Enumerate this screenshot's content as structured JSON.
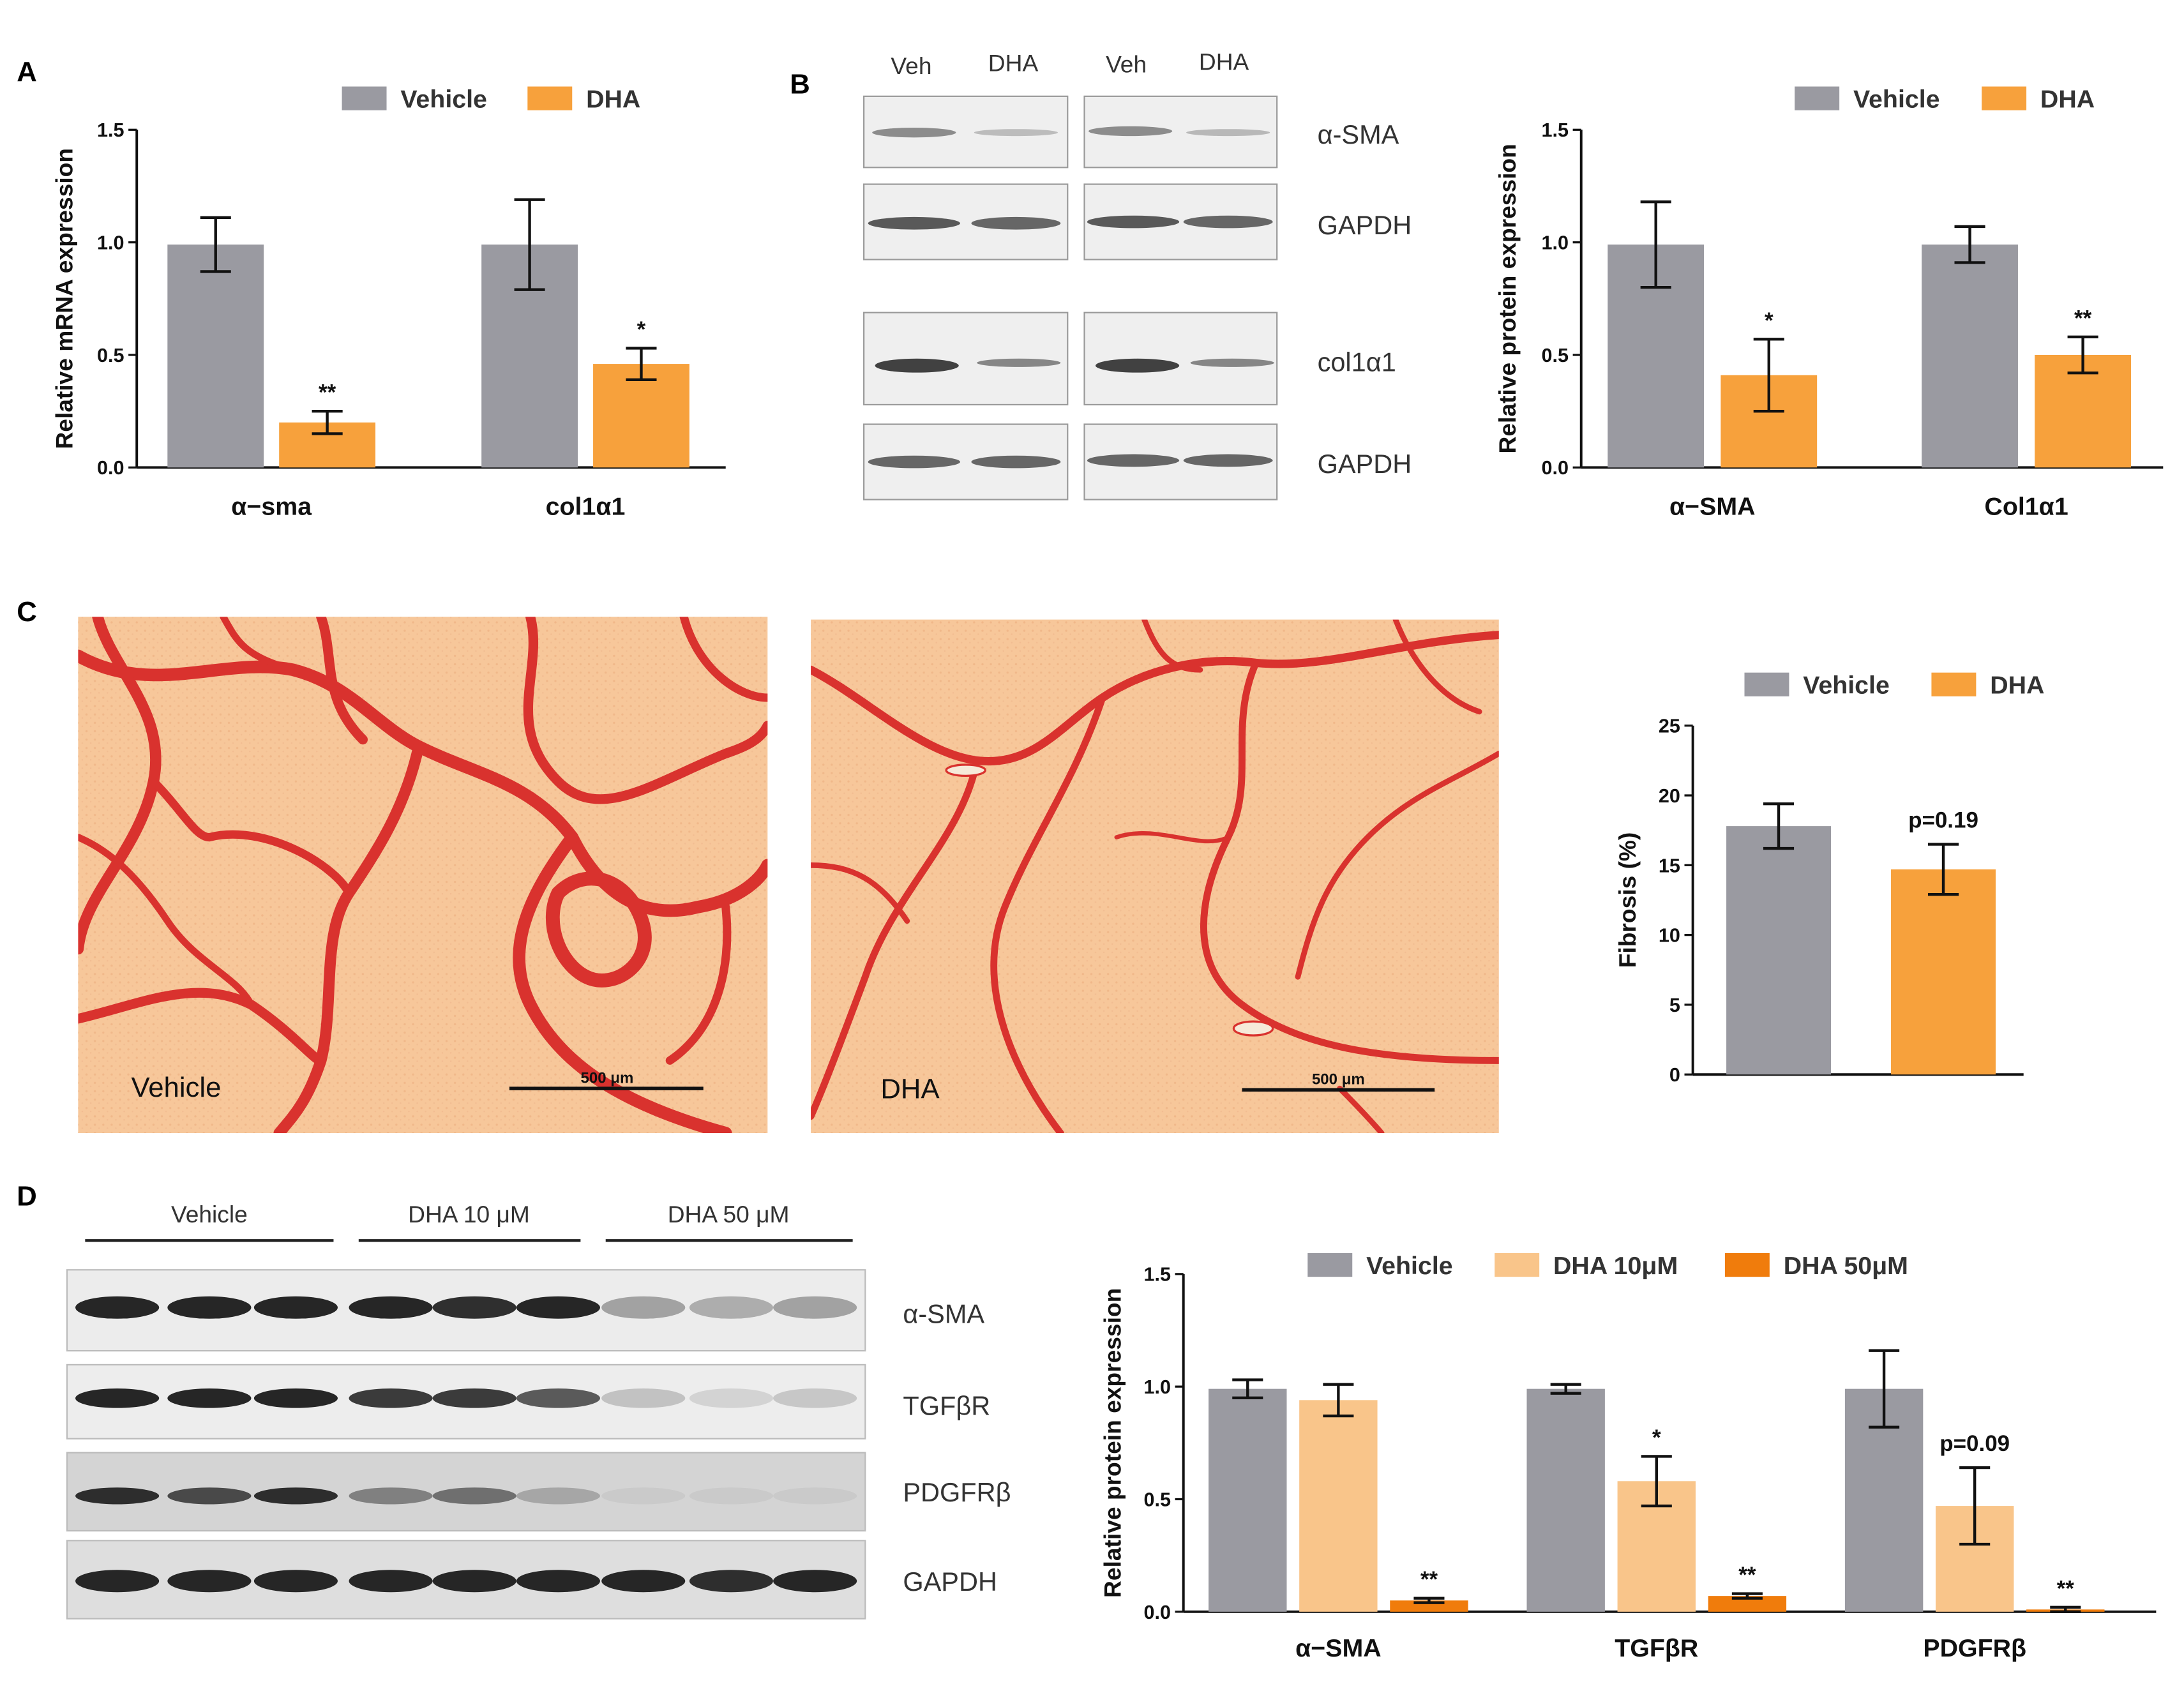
{
  "panels": {
    "A": "A",
    "B": "B",
    "C": "C",
    "D": "D"
  },
  "colors": {
    "vehicle": "#9a9aa1",
    "dha": "#f7a13c",
    "dha10": "#f9c58a",
    "dha50": "#f07c0c",
    "stain": "#d9322e",
    "tissue": "#f7c79a"
  },
  "blotB": {
    "lanes": [
      "Veh",
      "DHA",
      "Veh",
      "DHA"
    ],
    "rows": [
      "α-SMA",
      "GAPDH",
      "col1α1",
      "GAPDH"
    ]
  },
  "blotD": {
    "groups": [
      "Vehicle",
      "DHA 10 μM",
      "DHA 50 μM"
    ],
    "rows": [
      "α-SMA",
      "TGFβR",
      "PDGFRβ",
      "GAPDH"
    ]
  },
  "micro": {
    "left_label": "Vehicle",
    "right_label": "DHA",
    "scale_text": "500 μm"
  },
  "chart_data": [
    {
      "id": "A",
      "type": "bar",
      "ylabel": "Relative mRNA expression",
      "ylim": [
        0,
        1.5
      ],
      "yticks": [
        "0.0",
        "0.5",
        "1.0",
        "1.5"
      ],
      "categories": [
        "α−sma",
        "col1α1"
      ],
      "legend": [
        "Vehicle",
        "DHA"
      ],
      "series": [
        {
          "name": "Vehicle",
          "values": [
            0.99,
            0.99
          ],
          "err": [
            0.12,
            0.2
          ]
        },
        {
          "name": "DHA",
          "values": [
            0.2,
            0.46
          ],
          "err": [
            0.05,
            0.07
          ]
        }
      ],
      "annotations": [
        [
          "",
          ""
        ],
        [
          "**",
          "*"
        ]
      ]
    },
    {
      "id": "B",
      "type": "bar",
      "ylabel": "Relative protein expression",
      "ylim": [
        0,
        1.5
      ],
      "yticks": [
        "0.0",
        "0.5",
        "1.0",
        "1.5"
      ],
      "categories": [
        "α−SMA",
        "Col1α1"
      ],
      "legend": [
        "Vehicle",
        "DHA"
      ],
      "series": [
        {
          "name": "Vehicle",
          "values": [
            0.99,
            0.99
          ],
          "err": [
            0.19,
            0.08
          ]
        },
        {
          "name": "DHA",
          "values": [
            0.41,
            0.5
          ],
          "err": [
            0.16,
            0.08
          ]
        }
      ],
      "annotations": [
        [
          "",
          ""
        ],
        [
          "*",
          "**"
        ]
      ]
    },
    {
      "id": "C",
      "type": "bar",
      "ylabel": "Fibrosis (%)",
      "ylim": [
        0,
        25
      ],
      "yticks": [
        "0",
        "5",
        "10",
        "15",
        "20",
        "25"
      ],
      "categories": [
        "",
        ""
      ],
      "legend": [
        "Vehicle",
        "DHA"
      ],
      "series": [
        {
          "name": "Vehicle",
          "values": [
            17.8,
            null
          ],
          "err": [
            1.6,
            null
          ]
        },
        {
          "name": "DHA",
          "values": [
            null,
            14.7
          ],
          "err": [
            null,
            1.8
          ]
        }
      ],
      "annotations": [
        [
          "",
          ""
        ],
        [
          "",
          "p=0.19"
        ]
      ]
    },
    {
      "id": "D",
      "type": "bar",
      "ylabel": "Relative protein expression",
      "ylim": [
        0,
        1.5
      ],
      "yticks": [
        "0.0",
        "0.5",
        "1.0",
        "1.5"
      ],
      "categories": [
        "α−SMA",
        "TGFβR",
        "PDGFRβ"
      ],
      "legend": [
        "Vehicle",
        "DHA 10μM",
        "DHA 50μM"
      ],
      "series": [
        {
          "name": "Vehicle",
          "values": [
            0.99,
            0.99,
            0.99
          ],
          "err": [
            0.04,
            0.02,
            0.17
          ]
        },
        {
          "name": "DHA 10μM",
          "values": [
            0.94,
            0.58,
            0.47
          ],
          "err": [
            0.07,
            0.11,
            0.17
          ]
        },
        {
          "name": "DHA 50μM",
          "values": [
            0.05,
            0.07,
            0.01
          ],
          "err": [
            0.01,
            0.01,
            0.01
          ]
        }
      ],
      "annotations": [
        [
          "",
          "",
          ""
        ],
        [
          "",
          "*",
          "p=0.09"
        ],
        [
          "**",
          "**",
          "**"
        ]
      ]
    }
  ]
}
